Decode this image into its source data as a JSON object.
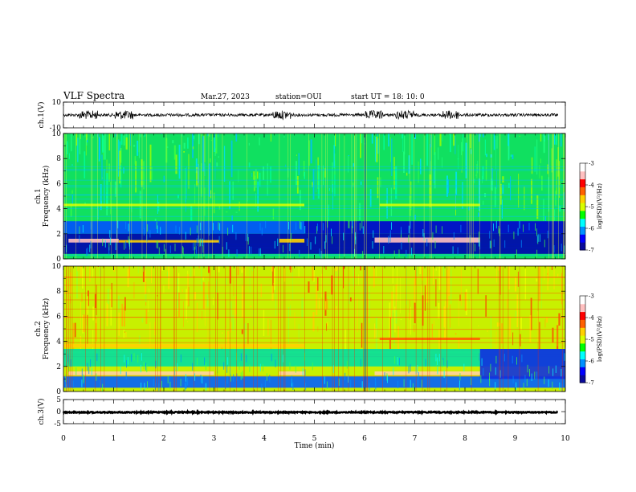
{
  "header": {
    "title": "VLF Spectra",
    "date": "Mar.27, 2023",
    "station": "station=OUI",
    "start": "start  UT  =   18: 10: 0"
  },
  "colorbar_colors": [
    "#0a0a9a",
    "#0000ff",
    "#0090ff",
    "#00ffff",
    "#00ff00",
    "#d8ff00",
    "#ffd000",
    "#ff6000",
    "#ff0000",
    "#ffc0c0",
    "#ffffff"
  ],
  "chart_data": [
    {
      "type": "line",
      "name": "ch1-waveform",
      "ylabel": "ch.1(V)",
      "ylim": [
        -10,
        10
      ],
      "yticks": [
        "10",
        "-10"
      ],
      "xlim": [
        0,
        10
      ],
      "y_level": 0,
      "note_bursts_min": [
        0.5,
        1.2,
        4.35,
        6.2,
        6.8,
        7.7
      ]
    },
    {
      "type": "heatmap",
      "name": "ch1-spectrogram",
      "ylabel": "ch.1\nFrequency  (kHz)",
      "xlim": [
        0,
        10
      ],
      "ylim": [
        0,
        10
      ],
      "yticks": [
        "0",
        "2",
        "4",
        "6",
        "8",
        "10"
      ],
      "colorbar": {
        "label": "log(PSD)(V²/Hz)",
        "range": [
          -7,
          -3
        ],
        "ticks": [
          "-3",
          "-4",
          "-5",
          "-6",
          "-7"
        ]
      },
      "base_level": "green",
      "bands": [
        {
          "t0": 0.0,
          "t1": 4.8,
          "f0": 4.2,
          "f1": 4.4,
          "color": "#d8ff00"
        },
        {
          "t0": 6.3,
          "t1": 8.3,
          "f0": 4.2,
          "f1": 4.4,
          "color": "#d8ff00"
        },
        {
          "t0": 0.0,
          "t1": 4.8,
          "f0": 2.0,
          "f1": 3.0,
          "color": "#0050ff"
        },
        {
          "t0": 4.8,
          "t1": 10.0,
          "f0": 2.0,
          "f1": 3.0,
          "color": "#0000d0"
        },
        {
          "t0": 0.0,
          "t1": 10.0,
          "f0": 0.4,
          "f1": 2.0,
          "color": "#0000b0"
        },
        {
          "t0": 0.1,
          "t1": 1.1,
          "f0": 1.3,
          "f1": 1.6,
          "color": "#ffc0c0"
        },
        {
          "t0": 1.1,
          "t1": 3.1,
          "f0": 1.3,
          "f1": 1.5,
          "color": "#ffd000"
        },
        {
          "t0": 4.3,
          "t1": 4.8,
          "f0": 1.3,
          "f1": 1.6,
          "color": "#ffd000"
        },
        {
          "t0": 6.2,
          "t1": 8.3,
          "f0": 1.3,
          "f1": 1.7,
          "color": "#ffc0c0"
        }
      ]
    },
    {
      "type": "heatmap",
      "name": "ch2-spectrogram",
      "ylabel": "ch.2\nFrequency  (kHz)",
      "xlim": [
        0,
        10
      ],
      "ylim": [
        0,
        10
      ],
      "yticks": [
        "0",
        "2",
        "4",
        "6",
        "8",
        "10"
      ],
      "colorbar": {
        "label": "log(PSD)(V²/Hz)",
        "range": [
          -7,
          -3
        ],
        "ticks": [
          "-3",
          "-4",
          "-5",
          "-6",
          "-7"
        ]
      },
      "base_level": "yellow",
      "bands": [
        {
          "t0": 0.0,
          "t1": 4.8,
          "f0": 3.5,
          "f1": 3.8,
          "color": "#ffd000"
        },
        {
          "t0": 6.3,
          "t1": 8.3,
          "f0": 4.1,
          "f1": 4.3,
          "color": "#ff6000"
        },
        {
          "t0": 0.0,
          "t1": 10.0,
          "f0": 2.0,
          "f1": 3.4,
          "color": "#00e0a0"
        },
        {
          "t0": 0.0,
          "t1": 10.0,
          "f0": 0.3,
          "f1": 1.2,
          "color": "#0060ff"
        },
        {
          "t0": 8.3,
          "t1": 10.0,
          "f0": 1.0,
          "f1": 3.4,
          "color": "#1030e0"
        },
        {
          "t0": 0.1,
          "t1": 3.0,
          "f0": 1.3,
          "f1": 1.6,
          "color": "#ffd0a0"
        },
        {
          "t0": 4.3,
          "t1": 4.8,
          "f0": 1.3,
          "f1": 1.6,
          "color": "#ffd0a0"
        },
        {
          "t0": 6.2,
          "t1": 8.3,
          "f0": 1.3,
          "f1": 1.6,
          "color": "#ffd0a0"
        }
      ]
    },
    {
      "type": "line",
      "name": "ch3-waveform",
      "ylabel": "ch.3(V)",
      "ylim": [
        -5,
        5
      ],
      "yticks": [
        "5",
        "0",
        "-5"
      ],
      "xlim": [
        0,
        10
      ],
      "y_level": -0.3
    }
  ],
  "xaxis": {
    "label": "Time  (min)",
    "ticks": [
      "0",
      "1",
      "2",
      "3",
      "4",
      "5",
      "6",
      "7",
      "8",
      "9",
      "10"
    ]
  }
}
